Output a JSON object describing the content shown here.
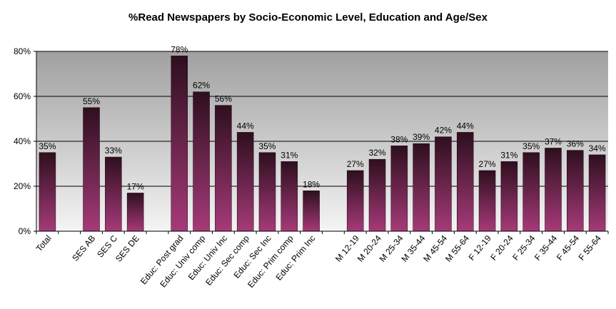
{
  "chart_data": {
    "type": "bar",
    "title": "%Read Newspapers by Socio-Economic Level, Education and Age/Sex",
    "xlabel": "",
    "ylabel": "",
    "ylim": [
      0,
      80
    ],
    "yticks": [
      "0%",
      "20%",
      "40%",
      "60%",
      "80%"
    ],
    "grid": true,
    "legend": "none",
    "categories": [
      "Total",
      "",
      "SES AB",
      "SES C",
      "SES DE",
      "",
      "Educ: Post grad",
      "Educ: Univ comp",
      "Educ: Univ Inc",
      "Educ: Sec comp",
      "Educ: Sec Inc",
      "Educ: Prim comp",
      "Educ: Prim Inc",
      "",
      "M 12-19",
      "M 20-24",
      "M 25-34",
      "M 35-44",
      "M 45-54",
      "M 55-64",
      "F 12-19",
      "F 20-24",
      "F 25-34",
      "F 35-44",
      "F 45-54",
      "F 55-64"
    ],
    "values": [
      35,
      null,
      55,
      33,
      17,
      null,
      78,
      62,
      56,
      44,
      35,
      31,
      18,
      null,
      27,
      32,
      38,
      39,
      42,
      44,
      27,
      31,
      35,
      37,
      36,
      34
    ],
    "data_labels": [
      "35%",
      "",
      "55%",
      "33%",
      "17%",
      "",
      "78%",
      "62%",
      "56%",
      "44%",
      "35%",
      "31%",
      "18%",
      "",
      "27%",
      "32%",
      "38%",
      "39%",
      "42%",
      "44%",
      "27%",
      "31%",
      "35%",
      "37%",
      "36%",
      "34%"
    ],
    "colors": {
      "bar_top": "#2e0f1e",
      "bar_bottom": "#a63a79",
      "plot_top": "#a0a0a0",
      "plot_bottom": "#f4f4f4",
      "grid": "#000000"
    }
  }
}
